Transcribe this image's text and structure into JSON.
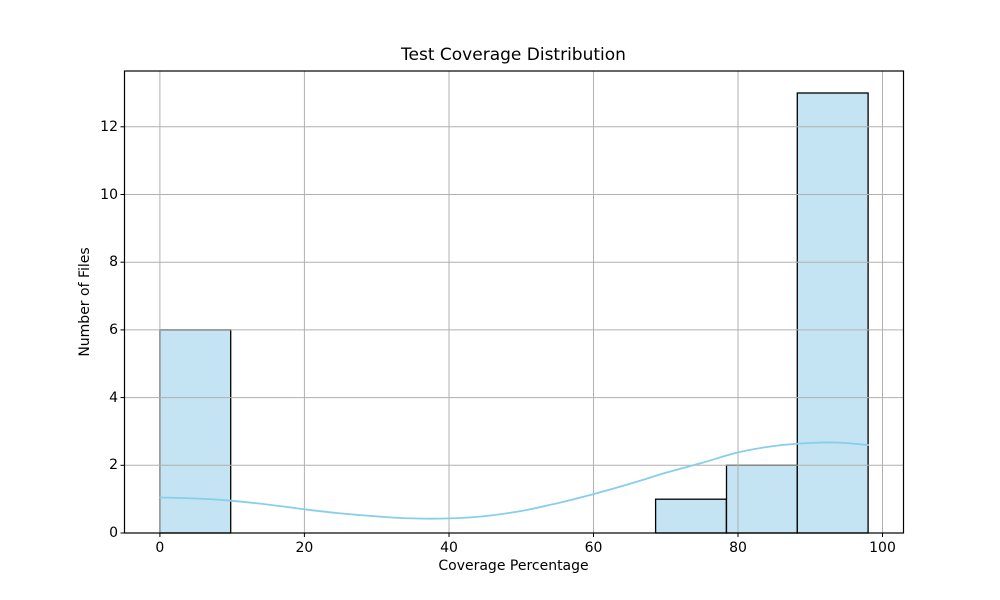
{
  "chart_data": {
    "type": "bar",
    "subtype": "histogram-with-kde",
    "title": "Test Coverage Distribution",
    "xlabel": "Coverage Percentage",
    "ylabel": "Number of Files",
    "xlim": [
      -4.9,
      102.9
    ],
    "ylim": [
      0,
      13.65
    ],
    "x_ticks": [
      0,
      20,
      40,
      60,
      80,
      100
    ],
    "y_ticks": [
      0,
      2,
      4,
      6,
      8,
      10,
      12
    ],
    "grid": true,
    "histogram": {
      "bin_edges": [
        0,
        9.8,
        19.6,
        29.4,
        39.2,
        49.0,
        58.8,
        68.6,
        78.4,
        88.2,
        98.0
      ],
      "counts": [
        6,
        0,
        0,
        0,
        0,
        0,
        0,
        1,
        2,
        13
      ],
      "total_files": 22
    },
    "kde": {
      "x": [
        0,
        5,
        10,
        15,
        20,
        25,
        30,
        35,
        40,
        45,
        50,
        55,
        60,
        65,
        70,
        75,
        80,
        85,
        90,
        94,
        98
      ],
      "y": [
        1.05,
        1.02,
        0.95,
        0.84,
        0.7,
        0.58,
        0.49,
        0.43,
        0.43,
        0.5,
        0.65,
        0.88,
        1.15,
        1.45,
        1.78,
        2.07,
        2.38,
        2.57,
        2.66,
        2.67,
        2.6
      ]
    },
    "colors": {
      "bar_fill": "#c5e4f3",
      "bar_edge": "#000000",
      "kde_line": "#87ceeb",
      "grid_line": "#b0b0b0",
      "spine": "#000000",
      "text": "#000000",
      "background": "#ffffff"
    },
    "legend": "none"
  }
}
